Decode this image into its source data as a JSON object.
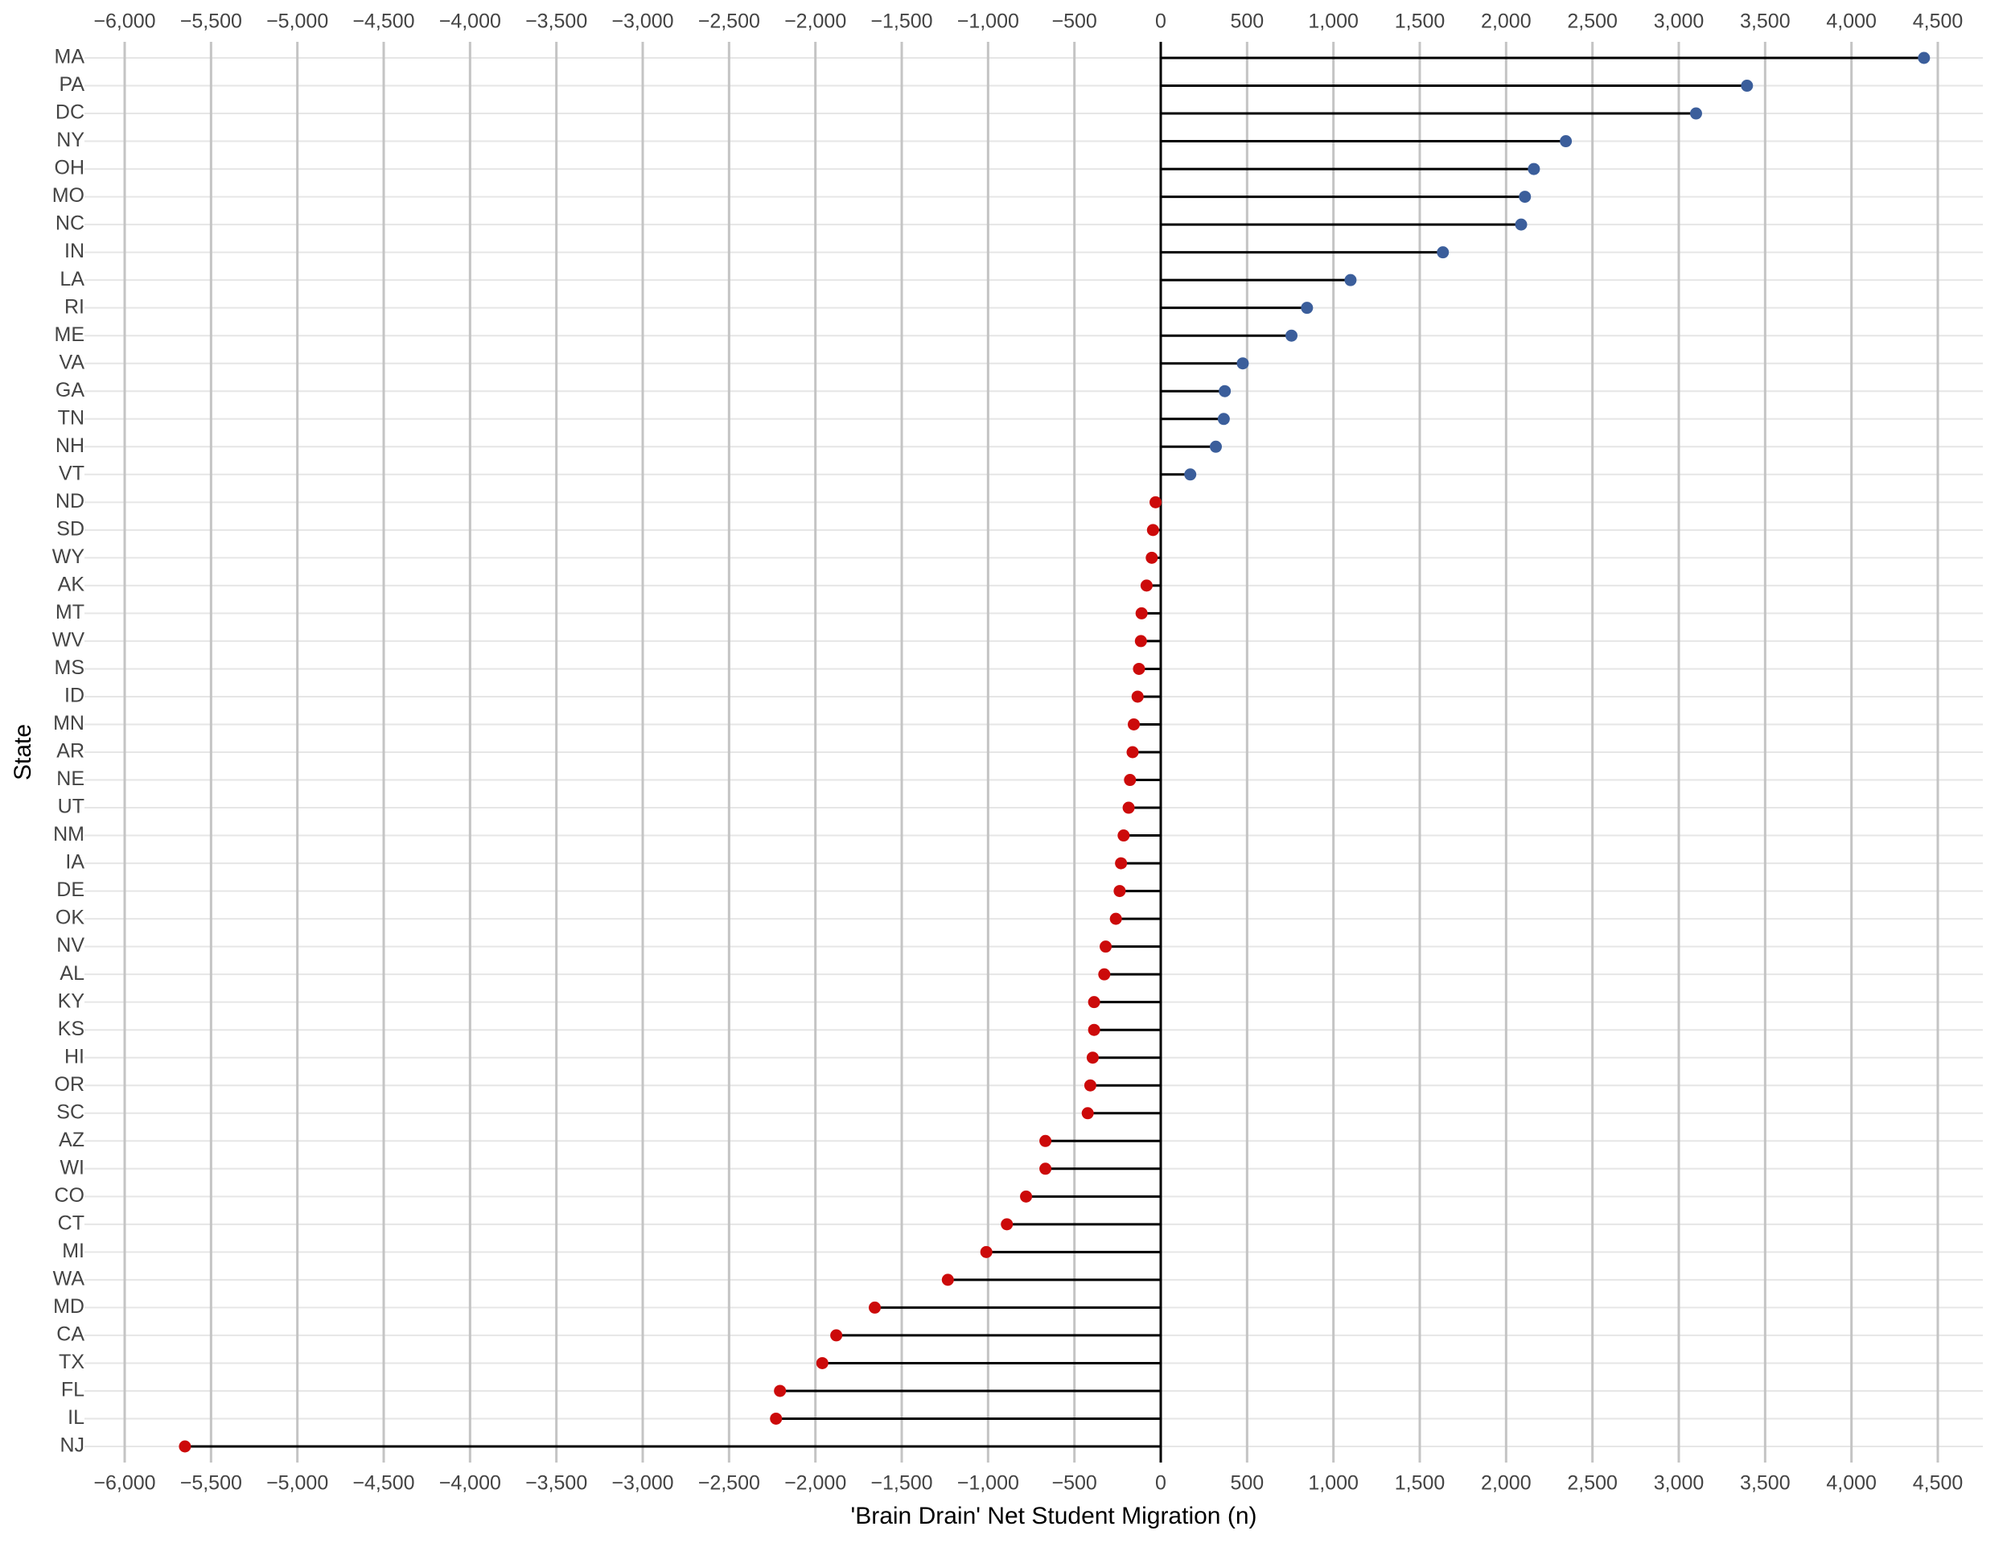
{
  "chart_data": {
    "type": "lollipop",
    "x_label": "'Brain Drain' Net Student Migration (n)",
    "y_label": "State",
    "categories": [
      "MA",
      "PA",
      "DC",
      "NY",
      "OH",
      "MO",
      "NC",
      "IN",
      "LA",
      "RI",
      "ME",
      "VA",
      "GA",
      "TN",
      "NH",
      "VT",
      "ND",
      "SD",
      "WY",
      "AK",
      "MT",
      "WV",
      "MS",
      "ID",
      "MN",
      "AR",
      "NE",
      "UT",
      "NM",
      "IA",
      "DE",
      "OK",
      "NV",
      "AL",
      "KY",
      "KS",
      "HI",
      "OR",
      "SC",
      "AZ",
      "WI",
      "CO",
      "CT",
      "MI",
      "WA",
      "MD",
      "CA",
      "TX",
      "FL",
      "IL",
      "NJ"
    ],
    "values": [
      4420,
      3395,
      3100,
      2346,
      2161,
      2109,
      2087,
      1634,
      1099,
      847,
      757,
      475,
      371,
      365,
      319,
      171,
      -30,
      -45,
      -52,
      -82,
      -111,
      -115,
      -126,
      -134,
      -156,
      -163,
      -178,
      -186,
      -215,
      -230,
      -238,
      -260,
      -319,
      -327,
      -386,
      -386,
      -394,
      -408,
      -423,
      -668,
      -668,
      -780,
      -891,
      -1010,
      -1233,
      -1656,
      -1879,
      -1960,
      -2205,
      -2228,
      -5651
    ],
    "positive_color": "#3b5e9b",
    "negative_color": "#cc0a0a",
    "xlim": [
      -6000,
      4500
    ],
    "xticks": [
      {
        "value": -6000,
        "label": "−6,000"
      },
      {
        "value": -5500,
        "label": "−5,500"
      },
      {
        "value": -5000,
        "label": "−5,000"
      },
      {
        "value": -4500,
        "label": "−4,500"
      },
      {
        "value": -4000,
        "label": "−4,000"
      },
      {
        "value": -3500,
        "label": "−3,500"
      },
      {
        "value": -3000,
        "label": "−3,000"
      },
      {
        "value": -2500,
        "label": "−2,500"
      },
      {
        "value": -2000,
        "label": "−2,000"
      },
      {
        "value": -1500,
        "label": "−1,500"
      },
      {
        "value": -1000,
        "label": "−1,000"
      },
      {
        "value": -500,
        "label": "−500"
      },
      0,
      500,
      {
        "value": 1000,
        "label": "1,000"
      },
      {
        "value": 1500,
        "label": "1,500"
      },
      {
        "value": 2000,
        "label": "2,000"
      },
      {
        "value": 2500,
        "label": "2,500"
      },
      {
        "value": 3000,
        "label": "3,000"
      },
      {
        "value": 3500,
        "label": "3,500"
      },
      {
        "value": 4000,
        "label": "4,000"
      },
      {
        "value": 4500,
        "label": "4,500"
      }
    ],
    "grid": true
  }
}
